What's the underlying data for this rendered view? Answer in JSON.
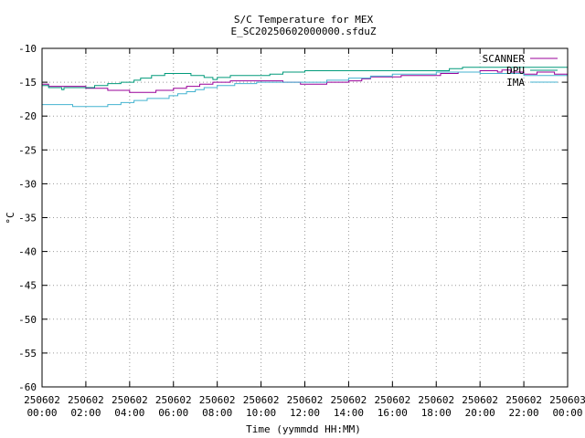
{
  "chart_data": {
    "type": "line",
    "title": "S/C Temperature for MEX",
    "subtitle": "E_SC20250602000000.sfduZ",
    "xlabel": "Time (yymmdd HH:MM)",
    "ylabel": "°C",
    "ylim": [
      -60,
      -10
    ],
    "yticks": [
      -10,
      -15,
      -20,
      -25,
      -30,
      -35,
      -40,
      -45,
      -50,
      -55,
      -60
    ],
    "xlim": [
      0,
      24
    ],
    "xticks": [
      {
        "h": 0,
        "d": "250602",
        "t": "00:00"
      },
      {
        "h": 2,
        "d": "250602",
        "t": "02:00"
      },
      {
        "h": 4,
        "d": "250602",
        "t": "04:00"
      },
      {
        "h": 6,
        "d": "250602",
        "t": "06:00"
      },
      {
        "h": 8,
        "d": "250602",
        "t": "08:00"
      },
      {
        "h": 10,
        "d": "250602",
        "t": "10:00"
      },
      {
        "h": 12,
        "d": "250602",
        "t": "12:00"
      },
      {
        "h": 14,
        "d": "250602",
        "t": "14:00"
      },
      {
        "h": 16,
        "d": "250602",
        "t": "16:00"
      },
      {
        "h": 18,
        "d": "250602",
        "t": "18:00"
      },
      {
        "h": 20,
        "d": "250602",
        "t": "20:00"
      },
      {
        "h": 22,
        "d": "250602",
        "t": "22:00"
      },
      {
        "h": 24,
        "d": "250603",
        "t": "00:00"
      }
    ],
    "grid": true,
    "legend": "top-right",
    "series": [
      {
        "name": "SCANNER",
        "color": "#990099",
        "points": [
          [
            0,
            -15.3
          ],
          [
            0.3,
            -15.3
          ],
          [
            0.3,
            -15.6
          ],
          [
            2.0,
            -15.6
          ],
          [
            2.0,
            -15.9
          ],
          [
            3.0,
            -15.9
          ],
          [
            3.0,
            -16.2
          ],
          [
            4.0,
            -16.2
          ],
          [
            4.0,
            -16.5
          ],
          [
            5.2,
            -16.5
          ],
          [
            5.2,
            -16.2
          ],
          [
            6.0,
            -16.2
          ],
          [
            6.0,
            -15.9
          ],
          [
            6.6,
            -15.9
          ],
          [
            6.6,
            -15.6
          ],
          [
            7.2,
            -15.6
          ],
          [
            7.2,
            -15.3
          ],
          [
            7.8,
            -15.3
          ],
          [
            7.8,
            -15.0
          ],
          [
            8.6,
            -15.0
          ],
          [
            8.6,
            -14.8
          ],
          [
            11.0,
            -14.8
          ],
          [
            11.0,
            -15.0
          ],
          [
            11.8,
            -15.0
          ],
          [
            11.8,
            -15.3
          ],
          [
            13.0,
            -15.3
          ],
          [
            13.0,
            -15.0
          ],
          [
            14.0,
            -15.0
          ],
          [
            14.0,
            -14.8
          ],
          [
            14.6,
            -14.8
          ],
          [
            14.6,
            -14.5
          ],
          [
            15.0,
            -14.5
          ],
          [
            15.0,
            -14.2
          ],
          [
            16.4,
            -14.2
          ],
          [
            16.4,
            -14.0
          ],
          [
            18.2,
            -14.0
          ],
          [
            18.2,
            -13.7
          ],
          [
            19.0,
            -13.7
          ],
          [
            19.0,
            -13.5
          ],
          [
            20.0,
            -13.5
          ],
          [
            20.0,
            -13.3
          ],
          [
            20.8,
            -13.3
          ],
          [
            20.8,
            -13.5
          ],
          [
            21.0,
            -13.5
          ],
          [
            21.0,
            -13.2
          ],
          [
            21.4,
            -13.2
          ],
          [
            21.4,
            -13.5
          ],
          [
            22.0,
            -13.5
          ],
          [
            22.0,
            -13.8
          ],
          [
            22.6,
            -13.8
          ],
          [
            22.6,
            -13.5
          ],
          [
            23.4,
            -13.5
          ],
          [
            23.4,
            -13.8
          ],
          [
            24,
            -13.8
          ]
        ]
      },
      {
        "name": "DPU",
        "color": "#009a7a",
        "points": [
          [
            0,
            -15.5
          ],
          [
            0.3,
            -15.5
          ],
          [
            0.3,
            -15.8
          ],
          [
            0.9,
            -15.8
          ],
          [
            0.9,
            -16.1
          ],
          [
            1.0,
            -16.1
          ],
          [
            1.0,
            -15.8
          ],
          [
            2.4,
            -15.8
          ],
          [
            2.4,
            -15.5
          ],
          [
            3.0,
            -15.5
          ],
          [
            3.0,
            -15.2
          ],
          [
            3.6,
            -15.2
          ],
          [
            3.6,
            -15.0
          ],
          [
            4.2,
            -15.0
          ],
          [
            4.2,
            -14.7
          ],
          [
            4.5,
            -14.7
          ],
          [
            4.5,
            -14.4
          ],
          [
            5.0,
            -14.4
          ],
          [
            5.0,
            -14.0
          ],
          [
            5.6,
            -14.0
          ],
          [
            5.6,
            -13.7
          ],
          [
            6.8,
            -13.7
          ],
          [
            6.8,
            -14.0
          ],
          [
            7.4,
            -14.0
          ],
          [
            7.4,
            -14.3
          ],
          [
            7.8,
            -14.3
          ],
          [
            7.8,
            -14.6
          ],
          [
            8.0,
            -14.6
          ],
          [
            8.0,
            -14.3
          ],
          [
            8.6,
            -14.3
          ],
          [
            8.6,
            -14.0
          ],
          [
            10.4,
            -14.0
          ],
          [
            10.4,
            -13.8
          ],
          [
            11.0,
            -13.8
          ],
          [
            11.0,
            -13.5
          ],
          [
            12.0,
            -13.5
          ],
          [
            12.0,
            -13.3
          ],
          [
            18.6,
            -13.3
          ],
          [
            18.6,
            -13.0
          ],
          [
            19.2,
            -13.0
          ],
          [
            19.2,
            -12.8
          ],
          [
            24,
            -12.8
          ]
        ]
      },
      {
        "name": "IMA",
        "color": "#44b3d0",
        "points": [
          [
            0,
            -18.3
          ],
          [
            1.4,
            -18.3
          ],
          [
            1.4,
            -18.6
          ],
          [
            3.0,
            -18.6
          ],
          [
            3.0,
            -18.3
          ],
          [
            3.6,
            -18.3
          ],
          [
            3.6,
            -18.0
          ],
          [
            4.2,
            -18.0
          ],
          [
            4.2,
            -17.7
          ],
          [
            4.8,
            -17.7
          ],
          [
            4.8,
            -17.4
          ],
          [
            5.8,
            -17.4
          ],
          [
            5.8,
            -17.0
          ],
          [
            6.2,
            -17.0
          ],
          [
            6.2,
            -16.7
          ],
          [
            6.6,
            -16.7
          ],
          [
            6.6,
            -16.4
          ],
          [
            7.0,
            -16.4
          ],
          [
            7.0,
            -16.1
          ],
          [
            7.4,
            -16.1
          ],
          [
            7.4,
            -15.8
          ],
          [
            8.0,
            -15.8
          ],
          [
            8.0,
            -15.5
          ],
          [
            8.8,
            -15.5
          ],
          [
            8.8,
            -15.2
          ],
          [
            9.8,
            -15.2
          ],
          [
            9.8,
            -15.0
          ],
          [
            13.0,
            -15.0
          ],
          [
            13.0,
            -14.7
          ],
          [
            14.0,
            -14.7
          ],
          [
            14.0,
            -14.4
          ],
          [
            15.0,
            -14.4
          ],
          [
            15.0,
            -14.1
          ],
          [
            16.0,
            -14.1
          ],
          [
            16.0,
            -13.8
          ],
          [
            18.0,
            -13.8
          ],
          [
            18.0,
            -13.5
          ],
          [
            20.0,
            -13.5
          ],
          [
            20.0,
            -13.7
          ],
          [
            22.0,
            -13.7
          ],
          [
            22.0,
            -14.0
          ],
          [
            24,
            -14.0
          ]
        ]
      }
    ]
  }
}
